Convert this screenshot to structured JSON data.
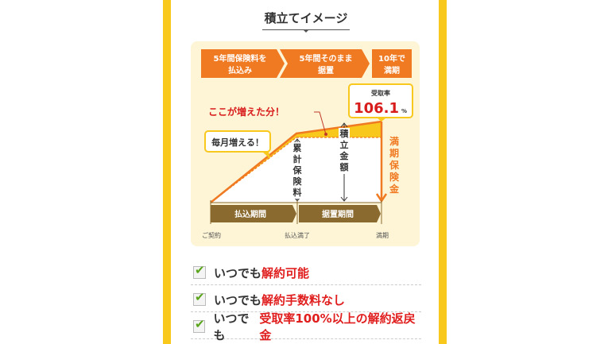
{
  "title": "積立てイメージ",
  "diagram": {
    "steps": [
      {
        "l1": "5年間保険料を",
        "l2": "払込み"
      },
      {
        "l1": "5年間そのまま",
        "l2": "据置"
      },
      {
        "l1": "10年で",
        "l2": "満期"
      }
    ],
    "rate_label": "受取率",
    "rate_value": "106.1",
    "rate_unit": "%",
    "increase_label": "ここが増えた分！",
    "monthly_label": "毎月増える！",
    "cumulative": [
      "累",
      "計",
      "保",
      "険",
      "料"
    ],
    "accumulated": [
      "積",
      "立",
      "金",
      "額"
    ],
    "maturity": [
      "満",
      "期",
      "保",
      "険",
      "金"
    ],
    "period1": "払込期間",
    "period2": "据置期間",
    "t0": "ご契約",
    "t1": "払込満了",
    "t2": "満期"
  },
  "checklist": [
    {
      "plain": "いつでも",
      "highlight": "解約可能"
    },
    {
      "plain": "いつでも",
      "highlight": "解約手数料なし"
    },
    {
      "plain": "いつでも",
      "highlight": "受取率100%以上の解約返戻金"
    }
  ],
  "colors": {
    "accent": "#f07a22",
    "frame": "#f8c81d",
    "highlight": "#e01e1e",
    "period": "#8a6a2e",
    "check": "#5aa51c"
  },
  "check_icon": "✔"
}
